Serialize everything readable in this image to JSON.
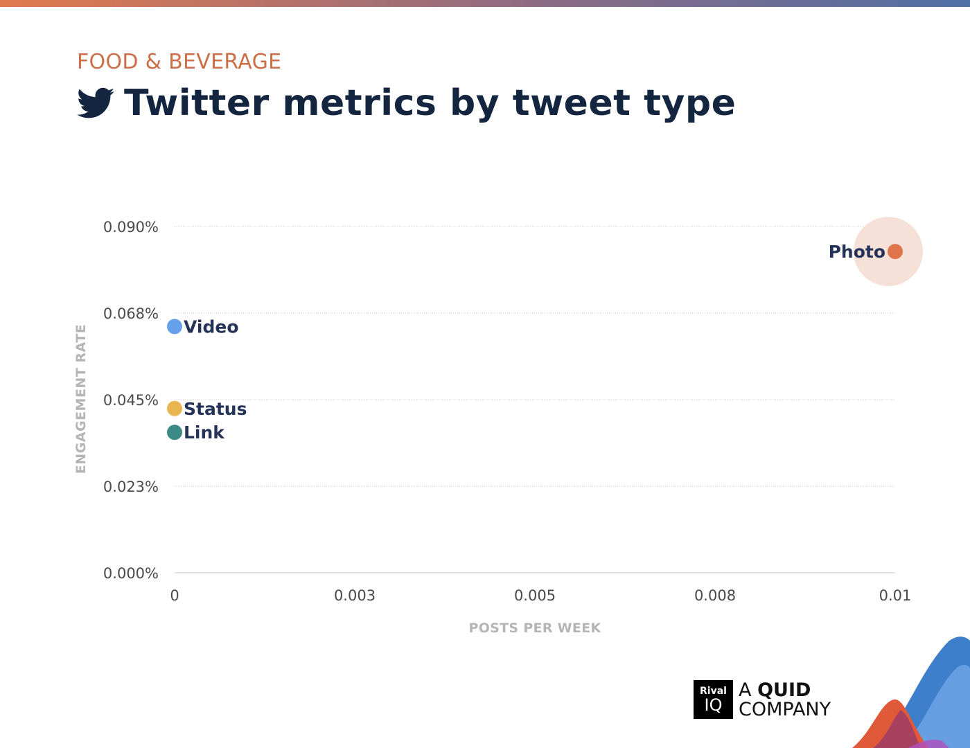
{
  "header": {
    "category": "FOOD & BEVERAGE",
    "title": "Twitter metrics by tweet type",
    "icon": "twitter-bird-icon"
  },
  "chart_data": {
    "type": "scatter",
    "xlabel": "POSTS PER WEEK",
    "ylabel": "ENGAGEMENT RATE",
    "xlim": [
      0,
      0.01
    ],
    "ylim": [
      0,
      0.09
    ],
    "x_ticks": [
      "0",
      "0.003",
      "0.005",
      "0.008",
      "0.01"
    ],
    "y_ticks": [
      "0.000%",
      "0.023%",
      "0.045%",
      "0.068%",
      "0.090%"
    ],
    "grid": true,
    "points": [
      {
        "name": "Photo",
        "x": 0.01,
        "y": 0.0835,
        "color": "#e0744a",
        "highlight": true
      },
      {
        "name": "Video",
        "x": 0,
        "y": 0.064,
        "color": "#66a0ea"
      },
      {
        "name": "Status",
        "x": 0,
        "y": 0.0427,
        "color": "#e9b551"
      },
      {
        "name": "Link",
        "x": 0,
        "y": 0.0365,
        "color": "#3c8a88"
      }
    ]
  },
  "branding": {
    "logo_top": "Rival",
    "logo_bottom": "IQ",
    "company_line1_prefix": "A ",
    "company_line1_bold": "QUID",
    "company_line2": "COMPANY"
  },
  "colors": {
    "accent": "#cc6e48",
    "title": "#14253f",
    "label": "#243357",
    "axis_title": "#b5b5b5"
  }
}
